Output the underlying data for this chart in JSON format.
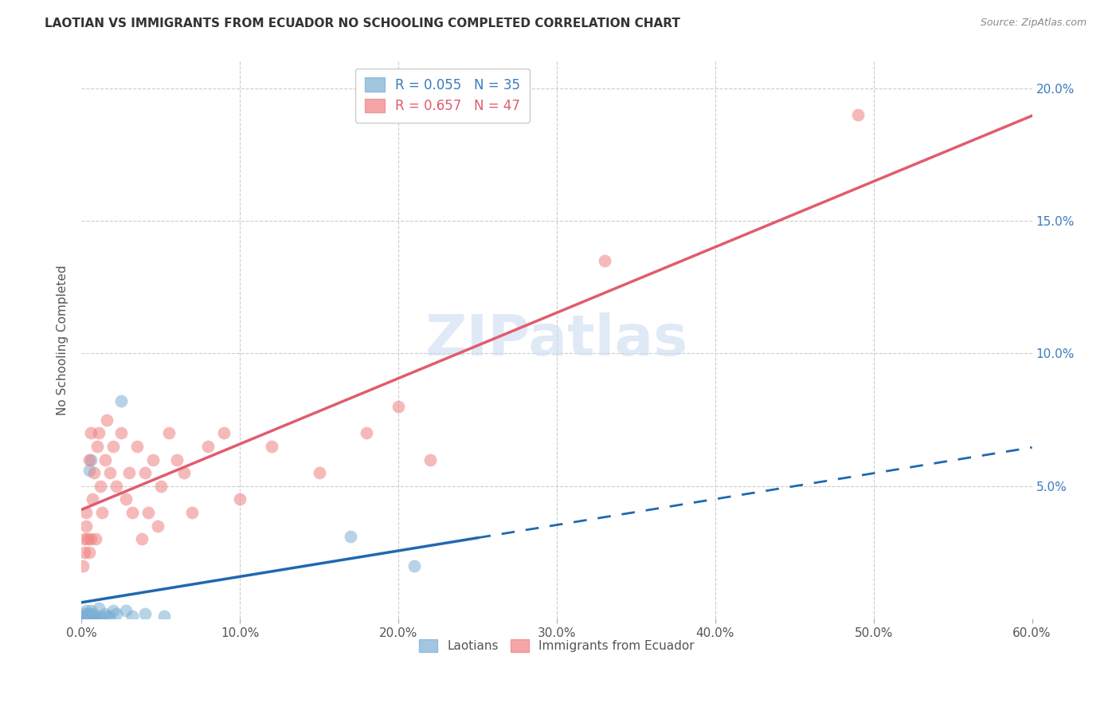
{
  "title": "LAOTIAN VS IMMIGRANTS FROM ECUADOR NO SCHOOLING COMPLETED CORRELATION CHART",
  "source": "Source: ZipAtlas.com",
  "ylabel": "No Schooling Completed",
  "xlim": [
    0.0,
    0.6
  ],
  "ylim": [
    0.0,
    0.21
  ],
  "laotian_color": "#7bafd4",
  "ecuador_color": "#f08080",
  "laotian_line_color": "#2068b0",
  "ecuador_line_color": "#e05c6e",
  "legend_blue_label": "R = 0.055   N = 35",
  "legend_pink_label": "R = 0.657   N = 47",
  "legend_blue_color": "#3a7bbf",
  "legend_pink_color": "#e05c6e",
  "bottom_legend_labels": [
    "Laotians",
    "Immigrants from Ecuador"
  ],
  "watermark": "ZIPatlas",
  "background_color": "#ffffff",
  "grid_color": "#cccccc",
  "laotian_x": [
    0.001,
    0.001,
    0.002,
    0.002,
    0.002,
    0.003,
    0.003,
    0.003,
    0.004,
    0.004,
    0.004,
    0.005,
    0.005,
    0.005,
    0.006,
    0.006,
    0.007,
    0.007,
    0.008,
    0.009,
    0.01,
    0.011,
    0.012,
    0.015,
    0.016,
    0.018,
    0.02,
    0.022,
    0.025,
    0.028,
    0.032,
    0.04,
    0.052,
    0.17,
    0.21
  ],
  "laotian_y": [
    0.0,
    0.001,
    0.0,
    0.001,
    0.002,
    0.0,
    0.001,
    0.003,
    0.0,
    0.001,
    0.002,
    0.0,
    0.001,
    0.056,
    0.06,
    0.003,
    0.002,
    0.001,
    0.0,
    0.001,
    0.0,
    0.004,
    0.001,
    0.002,
    0.001,
    0.001,
    0.003,
    0.002,
    0.082,
    0.003,
    0.001,
    0.002,
    0.001,
    0.031,
    0.02
  ],
  "ecuador_x": [
    0.001,
    0.002,
    0.002,
    0.003,
    0.003,
    0.004,
    0.005,
    0.005,
    0.006,
    0.006,
    0.007,
    0.008,
    0.009,
    0.01,
    0.011,
    0.012,
    0.013,
    0.015,
    0.016,
    0.018,
    0.02,
    0.022,
    0.025,
    0.028,
    0.03,
    0.032,
    0.035,
    0.038,
    0.04,
    0.042,
    0.045,
    0.048,
    0.05,
    0.055,
    0.06,
    0.065,
    0.07,
    0.08,
    0.09,
    0.1,
    0.12,
    0.15,
    0.18,
    0.2,
    0.22,
    0.33,
    0.49
  ],
  "ecuador_y": [
    0.02,
    0.03,
    0.025,
    0.04,
    0.035,
    0.03,
    0.025,
    0.06,
    0.03,
    0.07,
    0.045,
    0.055,
    0.03,
    0.065,
    0.07,
    0.05,
    0.04,
    0.06,
    0.075,
    0.055,
    0.065,
    0.05,
    0.07,
    0.045,
    0.055,
    0.04,
    0.065,
    0.03,
    0.055,
    0.04,
    0.06,
    0.035,
    0.05,
    0.07,
    0.06,
    0.055,
    0.04,
    0.065,
    0.07,
    0.045,
    0.065,
    0.055,
    0.07,
    0.08,
    0.06,
    0.135,
    0.19
  ]
}
